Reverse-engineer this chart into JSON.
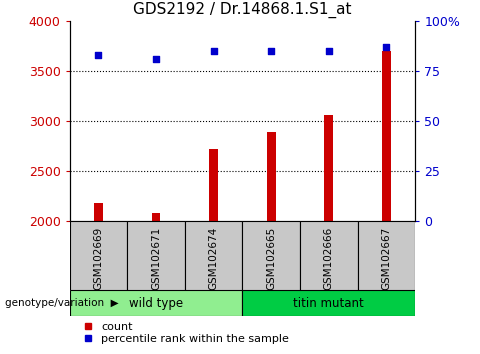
{
  "title": "GDS2192 / Dr.14868.1.S1_at",
  "samples": [
    "GSM102669",
    "GSM102671",
    "GSM102674",
    "GSM102665",
    "GSM102666",
    "GSM102667"
  ],
  "count_values": [
    2185,
    2085,
    2720,
    2890,
    3060,
    3700
  ],
  "percentile_values": [
    83,
    81,
    85,
    85,
    85,
    87
  ],
  "ylim_left": [
    2000,
    4000
  ],
  "ylim_right": [
    0,
    100
  ],
  "yticks_left": [
    2000,
    2500,
    3000,
    3500,
    4000
  ],
  "yticks_right": [
    0,
    25,
    50,
    75,
    100
  ],
  "ytick_labels_right": [
    "0",
    "25",
    "50",
    "75",
    "100%"
  ],
  "bar_color": "#cc0000",
  "scatter_color": "#0000cc",
  "groups": [
    {
      "label": "wild type",
      "indices": [
        0,
        1,
        2
      ],
      "color": "#90ee90"
    },
    {
      "label": "titin mutant",
      "indices": [
        3,
        4,
        5
      ],
      "color": "#00cc44"
    }
  ],
  "group_label": "genotype/variation",
  "legend_count_label": "count",
  "legend_pct_label": "percentile rank within the sample",
  "background_color": "#ffffff",
  "plot_bg_color": "#ffffff",
  "label_area_color": "#c8c8c8",
  "title_fontsize": 11,
  "tick_fontsize": 9,
  "bar_width": 0.15
}
